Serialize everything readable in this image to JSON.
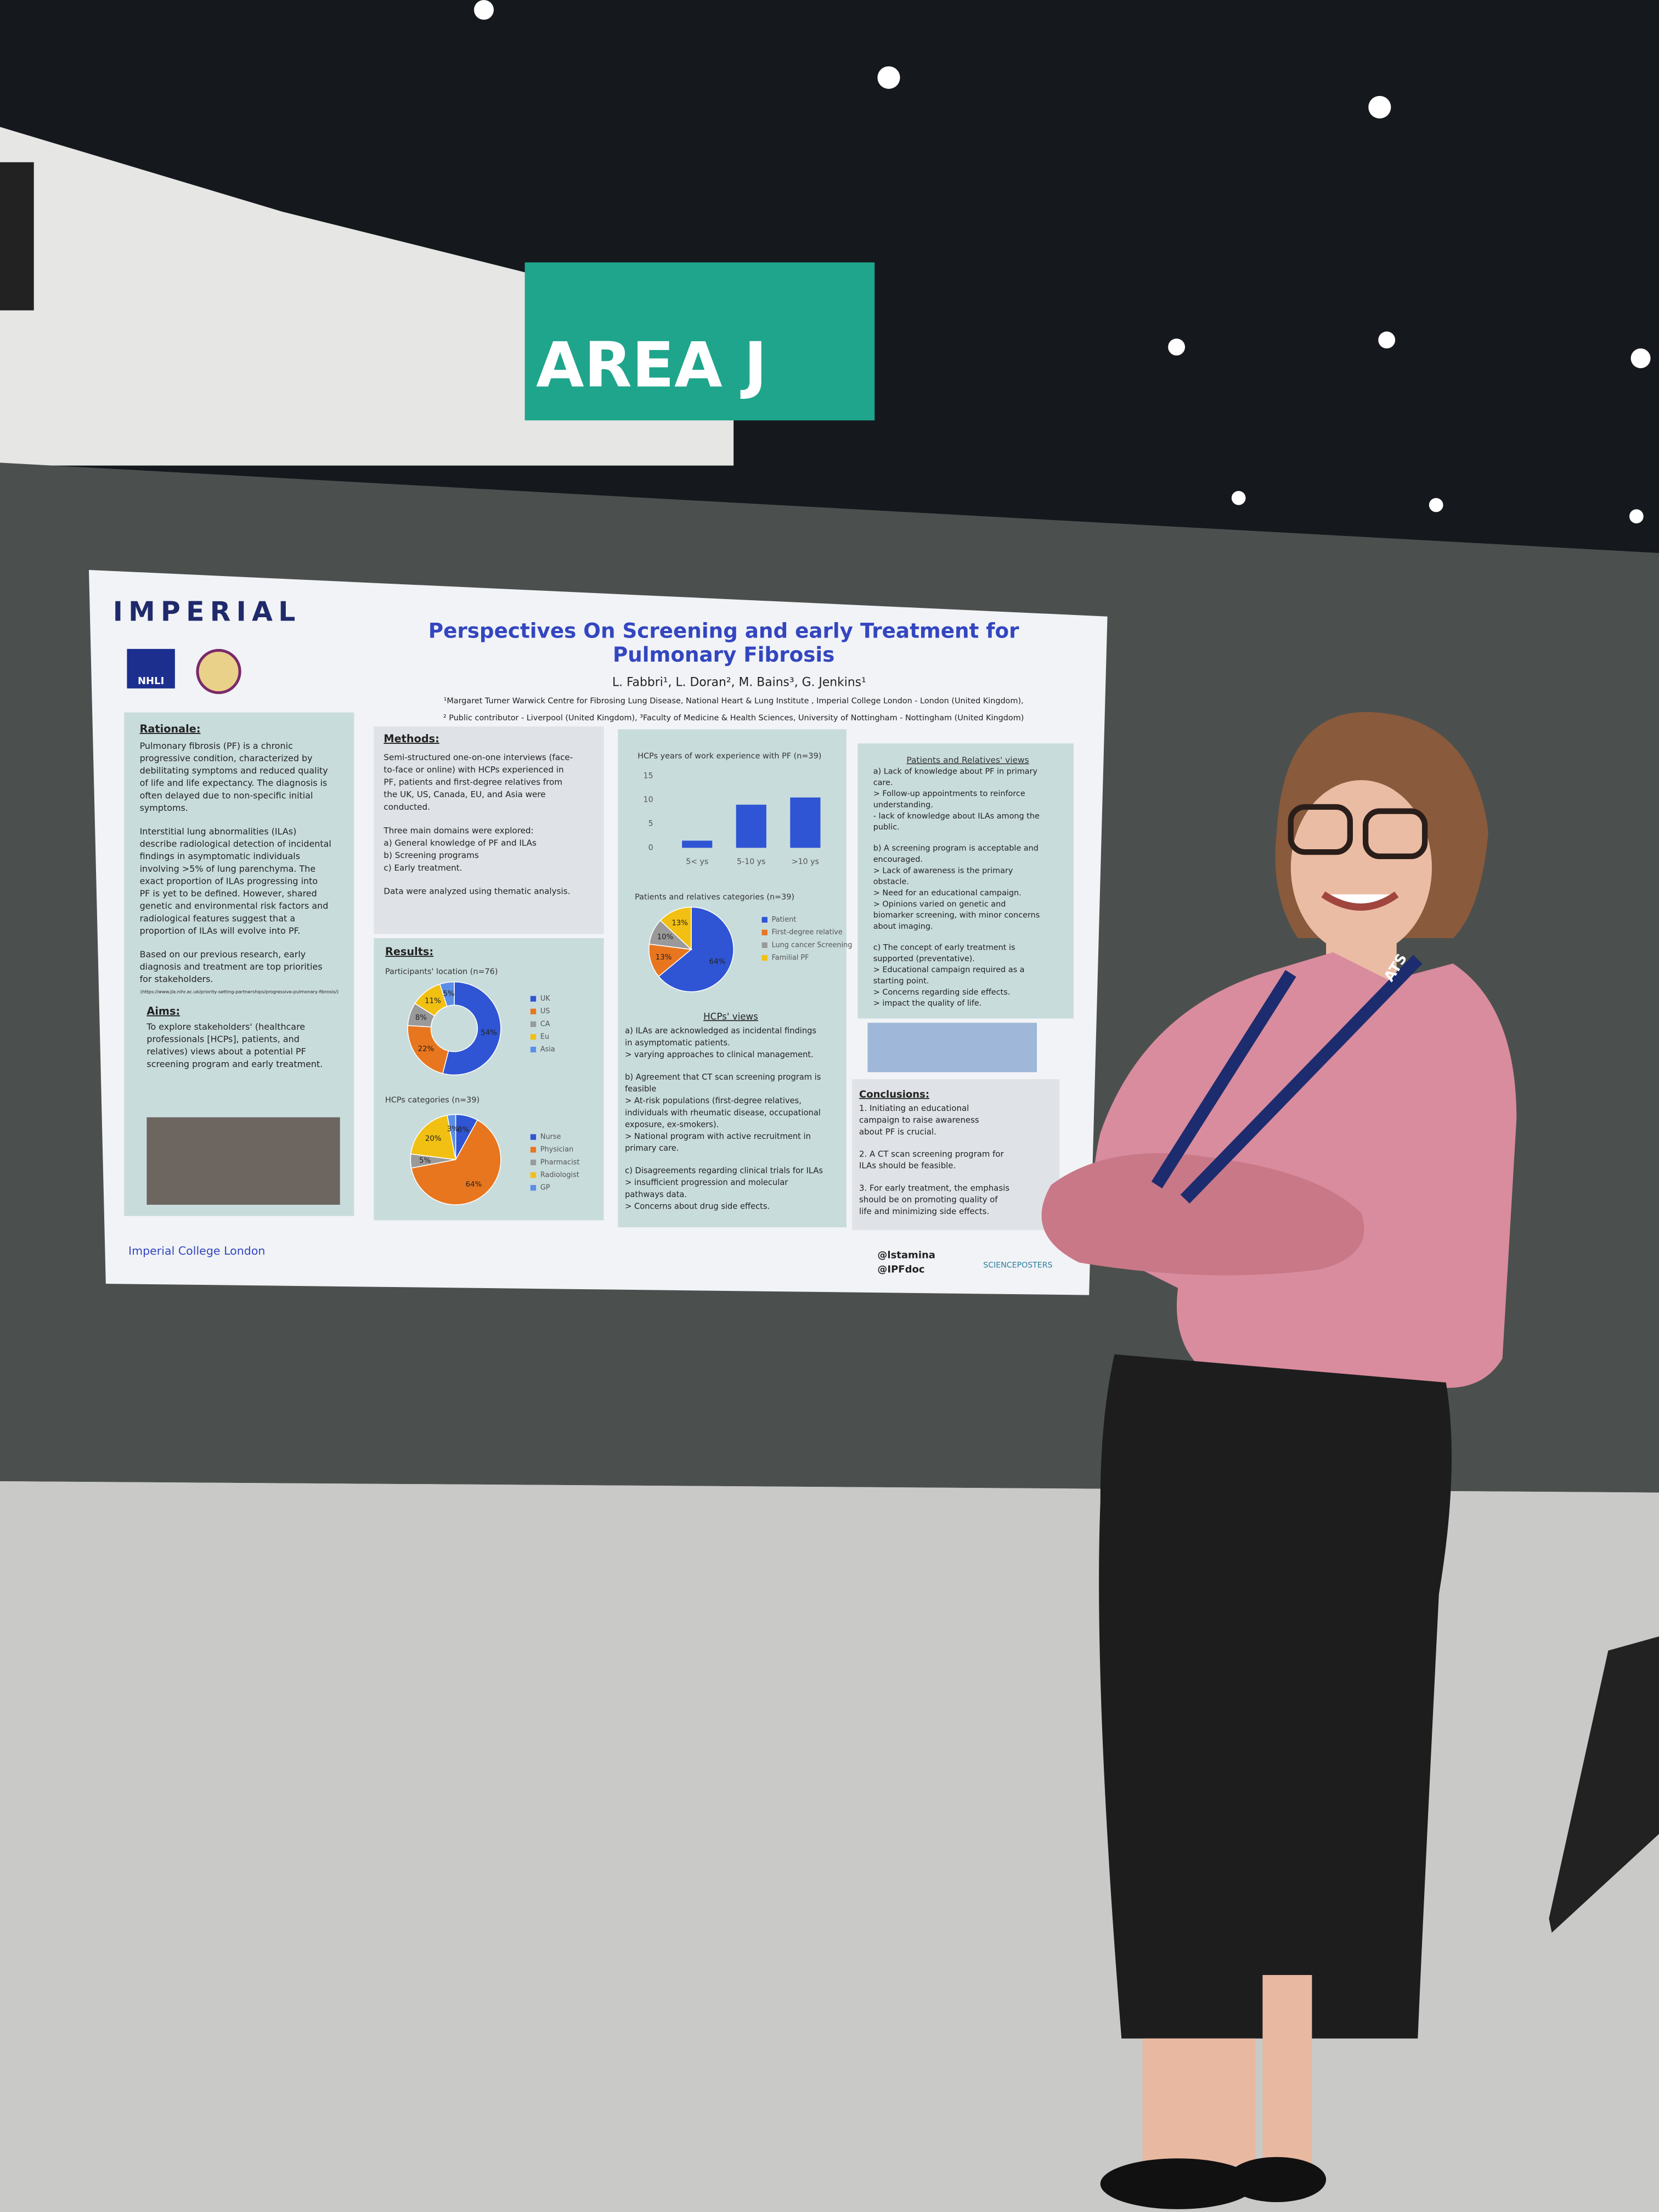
{
  "sign": "AREA J",
  "lanyard": "ATS",
  "poster": {
    "logo": "IMPERIAL",
    "nhli": "NHLI",
    "title": [
      "Perspectives On Screening and early Treatment for",
      "Pulmonary Fibrosis"
    ],
    "authors": "L. Fabbri¹, L. Doran², M. Bains³, G. Jenkins¹",
    "affiliations": [
      "¹Margaret Turner Warwick Centre for Fibrosing Lung Disease, National Heart & Lung Institute , Imperial College London - London (United Kingdom),",
      "² Public contributor - Liverpool (United Kingdom), ³Faculty of Medicine & Health Sciences, University of Nottingham - Nottingham (United Kingdom)"
    ],
    "rationale": {
      "heading": "Rationale:",
      "paragraphs": [
        [
          "Pulmonary fibrosis (PF) is a chronic",
          "progressive condition, characterized by",
          "debilitating symptoms and reduced quality",
          "of life and life expectancy. The diagnosis is",
          "often delayed due to non-specific initial",
          "symptoms."
        ],
        [
          "Interstitial lung abnormalities (ILAs)",
          "describe radiological detection of incidental",
          "findings in asymptomatic individuals",
          "involving >5% of lung parenchyma. The",
          "exact proportion of ILAs progressing into",
          "PF is yet to be defined. However, shared",
          "genetic and environmental risk factors and",
          "radiological features suggest that a",
          "proportion of ILAs will evolve into PF."
        ],
        [
          "Based on our previous research, early",
          "diagnosis and treatment are top priorities",
          "for stakeholders."
        ]
      ],
      "url": "(https://www.jla.nihr.ac.uk/priority-setting-partnerships/progressive-pulmonary-fibrosis/)"
    },
    "aims": {
      "heading": "Aims:",
      "paragraphs": [
        [
          "To explore stakeholders' (healthcare",
          "professionals [HCPs], patients, and",
          "relatives) views about a potential PF",
          "screening program and early treatment."
        ]
      ]
    },
    "methods": {
      "heading": "Methods:",
      "paragraphs": [
        [
          "Semi-structured one-on-one interviews (face-",
          "to-face or online) with HCPs experienced in",
          "PF, patients and first-degree relatives from",
          "the UK, US, Canada, EU, and Asia were",
          "conducted."
        ],
        [
          "Three main domains were explored:",
          "a)   General knowledge of PF and ILAs",
          "b)   Screening programs",
          "c)   Early treatment."
        ],
        [
          "Data were analyzed using thematic analysis."
        ]
      ]
    },
    "results_heading": "Results:",
    "charts": [
      {
        "type": "bar",
        "title": "HCPs years of work experience with PF (n=39)",
        "categories": [
          "5< ys",
          "5-10 ys",
          ">10 ys"
        ],
        "values": [
          1.5,
          9,
          10.5
        ],
        "color": "#2f55d4",
        "ylim": [
          0,
          15
        ],
        "yticks": [
          0,
          5,
          10,
          15
        ]
      },
      {
        "type": "pie",
        "title": "Patients and relatives categories (n=39)",
        "categories": [
          "Patient",
          "First-degree relative",
          "Lung cancer Screening",
          "Familial PF"
        ],
        "values": [
          64,
          13,
          10,
          13
        ],
        "value_labels": [
          "64%",
          "13%",
          "10%",
          "13%"
        ],
        "colors": [
          "#2f55d4",
          "#e8761f",
          "#9a9a9a",
          "#f2c012"
        ]
      },
      {
        "type": "donut",
        "title": "Participants' location (n=76)",
        "categories": [
          "UK",
          "US",
          "CA",
          "Eu",
          "Asia"
        ],
        "values": [
          54,
          22,
          8,
          11,
          5
        ],
        "value_labels": [
          "54%",
          "22%",
          "8%",
          "11%",
          "5%"
        ],
        "colors": [
          "#2f55d4",
          "#e8761f",
          "#9a9a9a",
          "#f2c012",
          "#5b8ee6"
        ]
      },
      {
        "type": "pie",
        "title": "HCPs categories (n=39)",
        "categories": [
          "Nurse",
          "Physician",
          "Pharmacist",
          "Radiologist",
          "GP"
        ],
        "values": [
          8,
          64,
          5,
          20,
          3
        ],
        "value_labels": [
          "8%",
          "64%",
          "5%",
          "20%",
          "3%"
        ],
        "colors": [
          "#2f55d4",
          "#e8761f",
          "#9a9a9a",
          "#f2c012",
          "#5b8ee6"
        ]
      }
    ],
    "views": {
      "heading": "HCPs' views",
      "paragraphs": [
        [
          "a) ILAs are acknowledged as incidental findings",
          "in asymptomatic patients.",
          " > varying approaches to clinical management."
        ],
        [
          "b) Agreement that CT scan screening program is",
          "feasible",
          " > At-risk populations (first-degree relatives,",
          "individuals with rheumatic disease, occupational",
          "exposure, ex-smokers).",
          " > National program with active recruitment in",
          "primary care."
        ],
        [
          "c) Disagreements regarding clinical trials for ILAs",
          "> insufficient progression and molecular",
          "pathways data.",
          "> Concerns about drug side effects."
        ]
      ]
    },
    "patients": {
      "heading": "Patients and Relatives' views",
      "paragraphs": [
        [
          "a) Lack of knowledge about PF in primary",
          "care.",
          " > Follow-up appointments to reinforce",
          "understanding.",
          " - lack of knowledge about ILAs among the",
          "public."
        ],
        [
          "b) A screening program is acceptable and",
          "encouraged.",
          " > Lack of awareness is the primary",
          "obstacle.",
          " > Need for an educational campaign.",
          " > Opinions varied on genetic and",
          "biomarker screening, with minor concerns",
          "about imaging."
        ],
        [
          "c) The concept of early treatment is",
          "supported (preventative).",
          "> Educational campaign required as a",
          "starting point.",
          "> Concerns regarding side effects.",
          "> impact the quality of life."
        ]
      ]
    },
    "conclusions": {
      "heading": "Conclusions:",
      "paragraphs": [
        [
          "1.  Initiating an educational",
          "campaign to raise awareness",
          "about PF is crucial."
        ],
        [
          "2.  A CT scan screening program for",
          "ILAs should be feasible."
        ],
        [
          "3.  For early treatment, the emphasis",
          "should be on promoting quality of",
          "life and minimizing side effects."
        ]
      ]
    },
    "footer": "Imperial College London",
    "handles": [
      "@lstamina",
      "@IPFdoc"
    ],
    "sponsor": "SCIENCEPOSTERS"
  }
}
